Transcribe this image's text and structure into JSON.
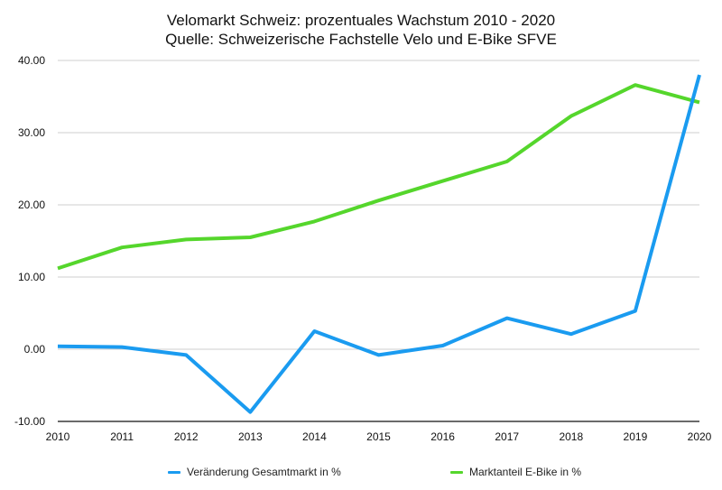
{
  "chart_data": {
    "type": "line",
    "title": "Velomarkt Schweiz: prozentuales Wachstum 2010 - 2020",
    "subtitle": "Quelle: Schweizerische Fachstelle Velo und E-Bike SFVE",
    "x": [
      "2010",
      "2011",
      "2012",
      "2013",
      "2014",
      "2015",
      "2016",
      "2017",
      "2018",
      "2019",
      "2020"
    ],
    "yticks": [
      "-10.00",
      "0.00",
      "10.00",
      "20.00",
      "30.00",
      "40.00"
    ],
    "ylim": [
      -10,
      40
    ],
    "grid": true,
    "legend_position": "bottom",
    "series": [
      {
        "name": "Veränderung Gesamtmarkt in %",
        "color": "#1a9bf0",
        "values": [
          0.4,
          0.3,
          -0.8,
          -8.7,
          2.5,
          -0.8,
          0.5,
          4.3,
          2.1,
          5.3,
          38.0
        ]
      },
      {
        "name": "Marktanteil E-Bike in %",
        "color": "#55d62c",
        "values": [
          11.2,
          14.1,
          15.2,
          15.5,
          17.7,
          20.6,
          23.3,
          26.0,
          32.3,
          36.6,
          34.2
        ]
      }
    ]
  }
}
